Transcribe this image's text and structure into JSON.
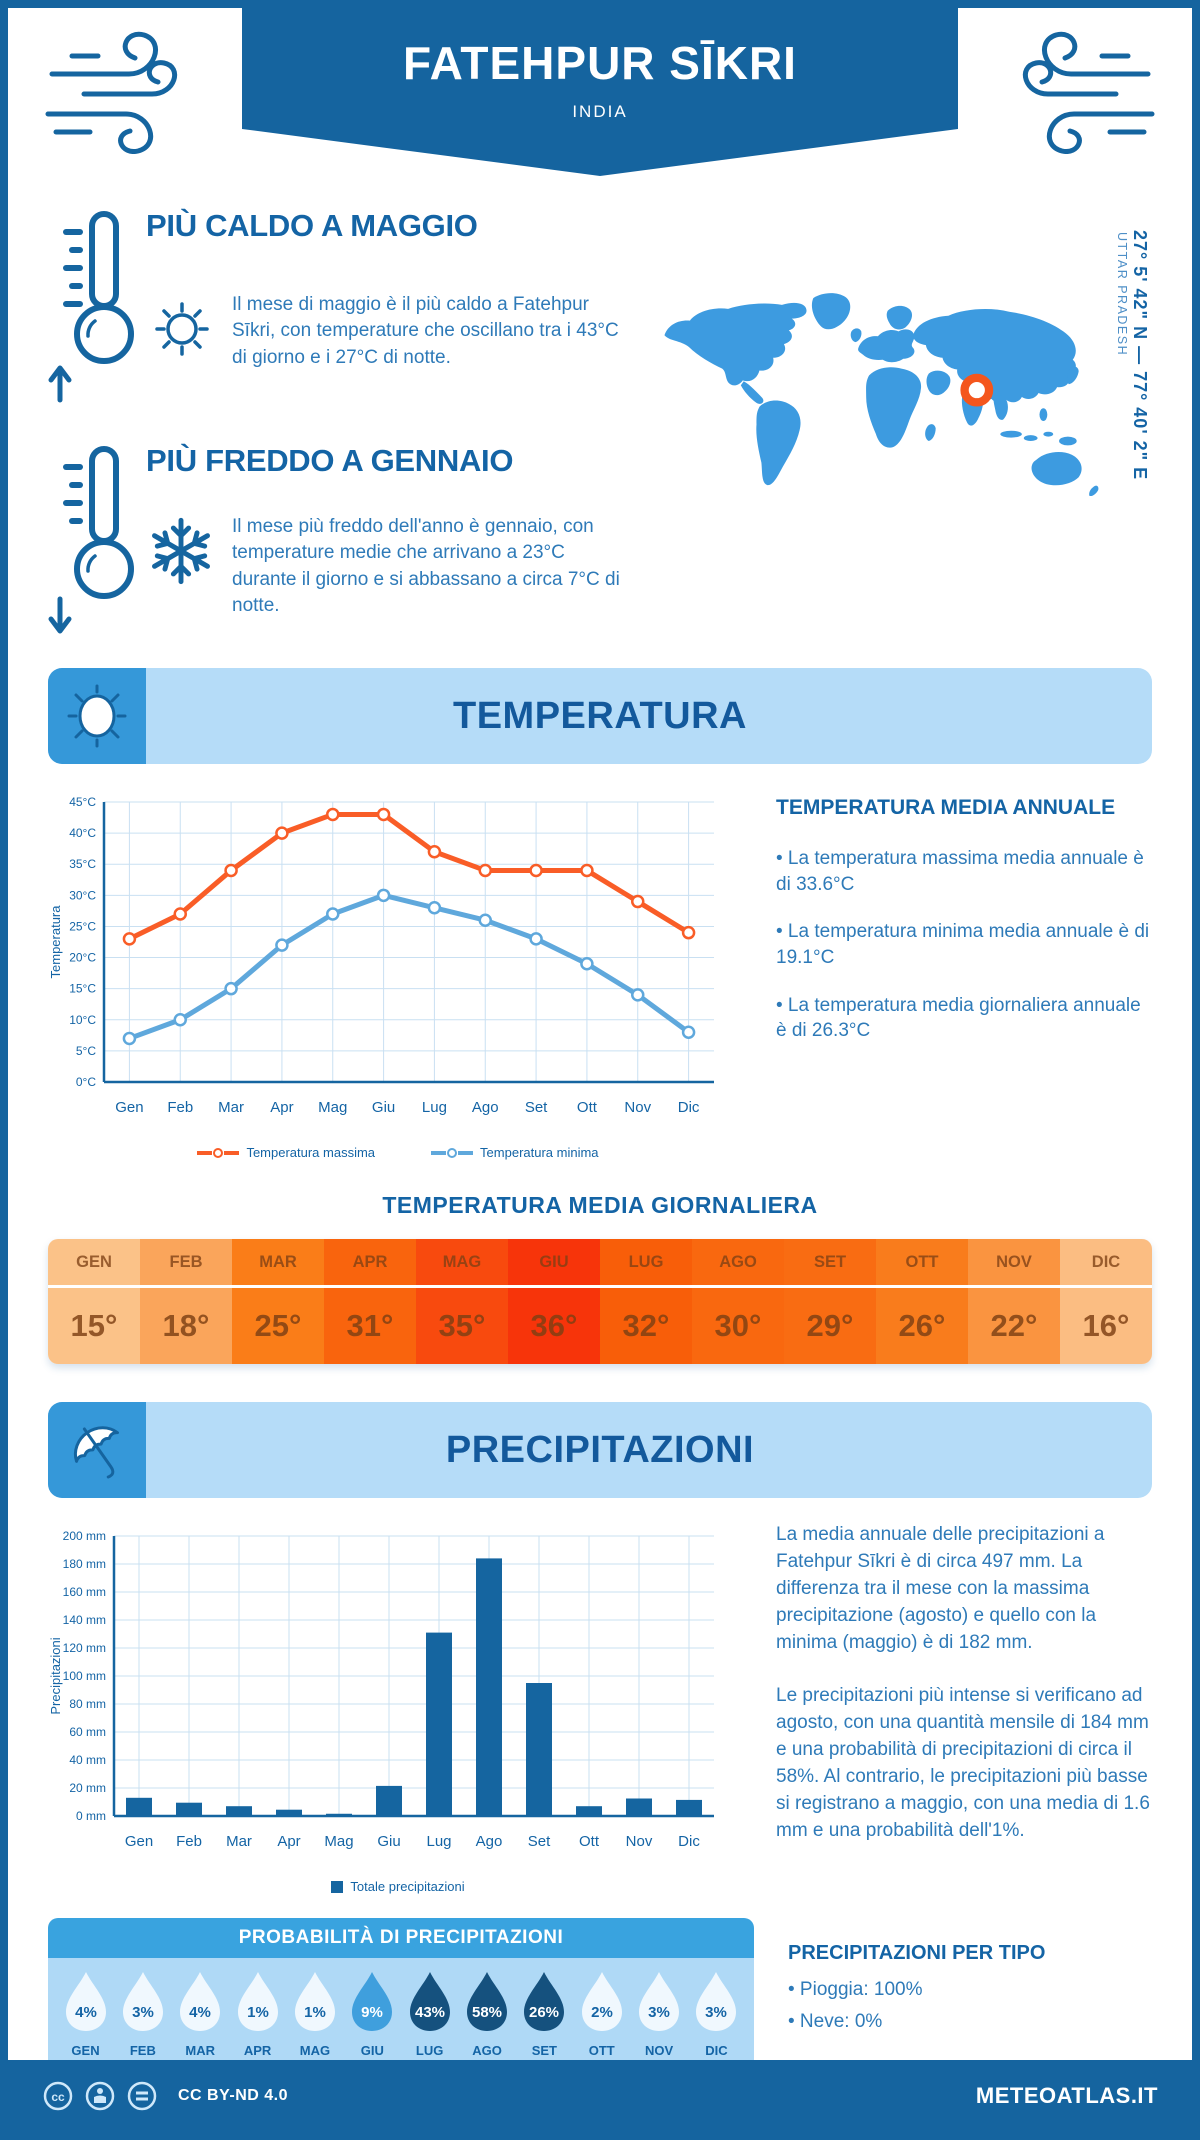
{
  "header": {
    "title": "FATEHPUR SĪKRI",
    "subtitle": "INDIA"
  },
  "highlights": {
    "hot": {
      "title": "PIÙ CALDO A MAGGIO",
      "text": "Il mese di maggio è il più caldo a Fatehpur Sīkri, con temperature che oscillano tra i 43°C di giorno e i 27°C di notte."
    },
    "cold": {
      "title": "PIÙ FREDDO A GENNAIO",
      "text": "Il mese più freddo dell'anno è gennaio, con temperature medie che arrivano a 23°C durante il giorno e si abbassano a circa 7°C di notte."
    }
  },
  "map": {
    "coordinates": "27° 5' 42\" N — 77° 40' 2\" E",
    "region": "UTTAR PRADESH",
    "land_color": "#3D9BE0",
    "marker_color": "#F4561D"
  },
  "temperature_section": {
    "banner": "TEMPERATURA",
    "annual": {
      "title": "TEMPERATURA MEDIA ANNUALE",
      "bullets": [
        "• La temperatura massima media annuale è di 33.6°C",
        "• La temperatura minima media annuale è di 19.1°C",
        "• La temperatura media giornaliera annuale è di 26.3°C"
      ]
    }
  },
  "precipitation_section": {
    "banner": "PRECIPITAZIONI",
    "paragraphs": [
      "La media annuale delle precipitazioni a Fatehpur Sīkri è di circa 497 mm. La differenza tra il mese con la massima precipitazione (agosto) e quello con la minima (maggio) è di 182 mm.",
      "Le precipitazioni più intense si verificano ad agosto, con una quantità mensile di 184 mm e una probabilità di precipitazioni di circa il 58%. Al contrario, le precipitazioni più basse si registrano a maggio, con una media di 1.6 mm e una probabilità dell'1%."
    ],
    "by_type": {
      "title": "PRECIPITAZIONI PER TIPO",
      "bullets": [
        "• Pioggia: 100%",
        "• Neve: 0%"
      ]
    }
  },
  "footer": {
    "license": "CC BY-ND 4.0",
    "site": "METEOATLAS.IT"
  },
  "chart_data": [
    {
      "id": "temperature-line",
      "type": "line",
      "categories": [
        "Gen",
        "Feb",
        "Mar",
        "Apr",
        "Mag",
        "Giu",
        "Lug",
        "Ago",
        "Set",
        "Ott",
        "Nov",
        "Dic"
      ],
      "series": [
        {
          "name": "Temperatura massima",
          "color": "#F95D27",
          "values": [
            23,
            27,
            34,
            40,
            43,
            43,
            37,
            34,
            34,
            34,
            29,
            24
          ]
        },
        {
          "name": "Temperatura minima",
          "color": "#5FA8DC",
          "values": [
            7,
            10,
            15,
            22,
            27,
            30,
            28,
            26,
            23,
            19,
            14,
            8
          ]
        }
      ],
      "ylabel": "Temperatura",
      "ylim": [
        0,
        45
      ],
      "ystep": 5,
      "yunit": "°C",
      "grid": true,
      "legend_position": "bottom"
    },
    {
      "id": "precipitation-bars",
      "type": "bar",
      "categories": [
        "Gen",
        "Feb",
        "Mar",
        "Apr",
        "Mag",
        "Giu",
        "Lug",
        "Ago",
        "Set",
        "Ott",
        "Nov",
        "Dic"
      ],
      "values": [
        13,
        9.5,
        7,
        4.5,
        1.6,
        21.5,
        131,
        184,
        95,
        7,
        12.5,
        11.5
      ],
      "bar_color": "#1565A0",
      "ylabel": "Precipitazioni",
      "ylim": [
        0,
        200
      ],
      "ystep": 20,
      "yunit": " mm",
      "legend": "Totale precipitazioni",
      "grid": true,
      "legend_position": "bottom"
    },
    {
      "id": "monthly-mean-temperature",
      "type": "table",
      "title": "TEMPERATURA MEDIA GIORNALIERA",
      "months": [
        "GEN",
        "FEB",
        "MAR",
        "APR",
        "MAG",
        "GIU",
        "LUG",
        "AGO",
        "SET",
        "OTT",
        "NOV",
        "DIC"
      ],
      "values": [
        "15°",
        "18°",
        "25°",
        "31°",
        "35°",
        "36°",
        "32°",
        "30°",
        "29°",
        "26°",
        "22°",
        "16°"
      ],
      "cell_colors": [
        "#FBC288",
        "#FAA55B",
        "#FA7D18",
        "#F9640D",
        "#F84A0E",
        "#F7340A",
        "#F85E09",
        "#F9680F",
        "#F96C12",
        "#F97C1C",
        "#FA9440",
        "#FBBD82"
      ]
    },
    {
      "id": "precipitation-probability",
      "type": "table",
      "title": "PROBABILITÀ DI PRECIPITAZIONI",
      "months": [
        "GEN",
        "FEB",
        "MAR",
        "APR",
        "MAG",
        "GIU",
        "LUG",
        "AGO",
        "SET",
        "OTT",
        "NOV",
        "DIC"
      ],
      "values": [
        "4%",
        "3%",
        "4%",
        "1%",
        "1%",
        "9%",
        "43%",
        "58%",
        "26%",
        "2%",
        "3%",
        "3%"
      ],
      "drop_colors": [
        "#F0F8FE",
        "#F0F8FE",
        "#F0F8FE",
        "#F0F8FE",
        "#F0F8FE",
        "#3F9FDD",
        "#15517E",
        "#15517E",
        "#15517E",
        "#F0F8FE",
        "#F0F8FE",
        "#F0F8FE"
      ],
      "text_colors": [
        "#1464A5",
        "#1464A5",
        "#1464A5",
        "#1464A5",
        "#1464A5",
        "#FFFFFF",
        "#FFFFFF",
        "#FFFFFF",
        "#FFFFFF",
        "#1464A5",
        "#1464A5",
        "#1464A5"
      ]
    }
  ],
  "colors": {
    "primary": "#15649F",
    "banner_bg": "#B5DCF8",
    "banner_icon_bg": "#3598D9",
    "text_blue": "#2E7AB8",
    "heading_blue": "#1464A5",
    "accent_orange": "#F4561D"
  }
}
